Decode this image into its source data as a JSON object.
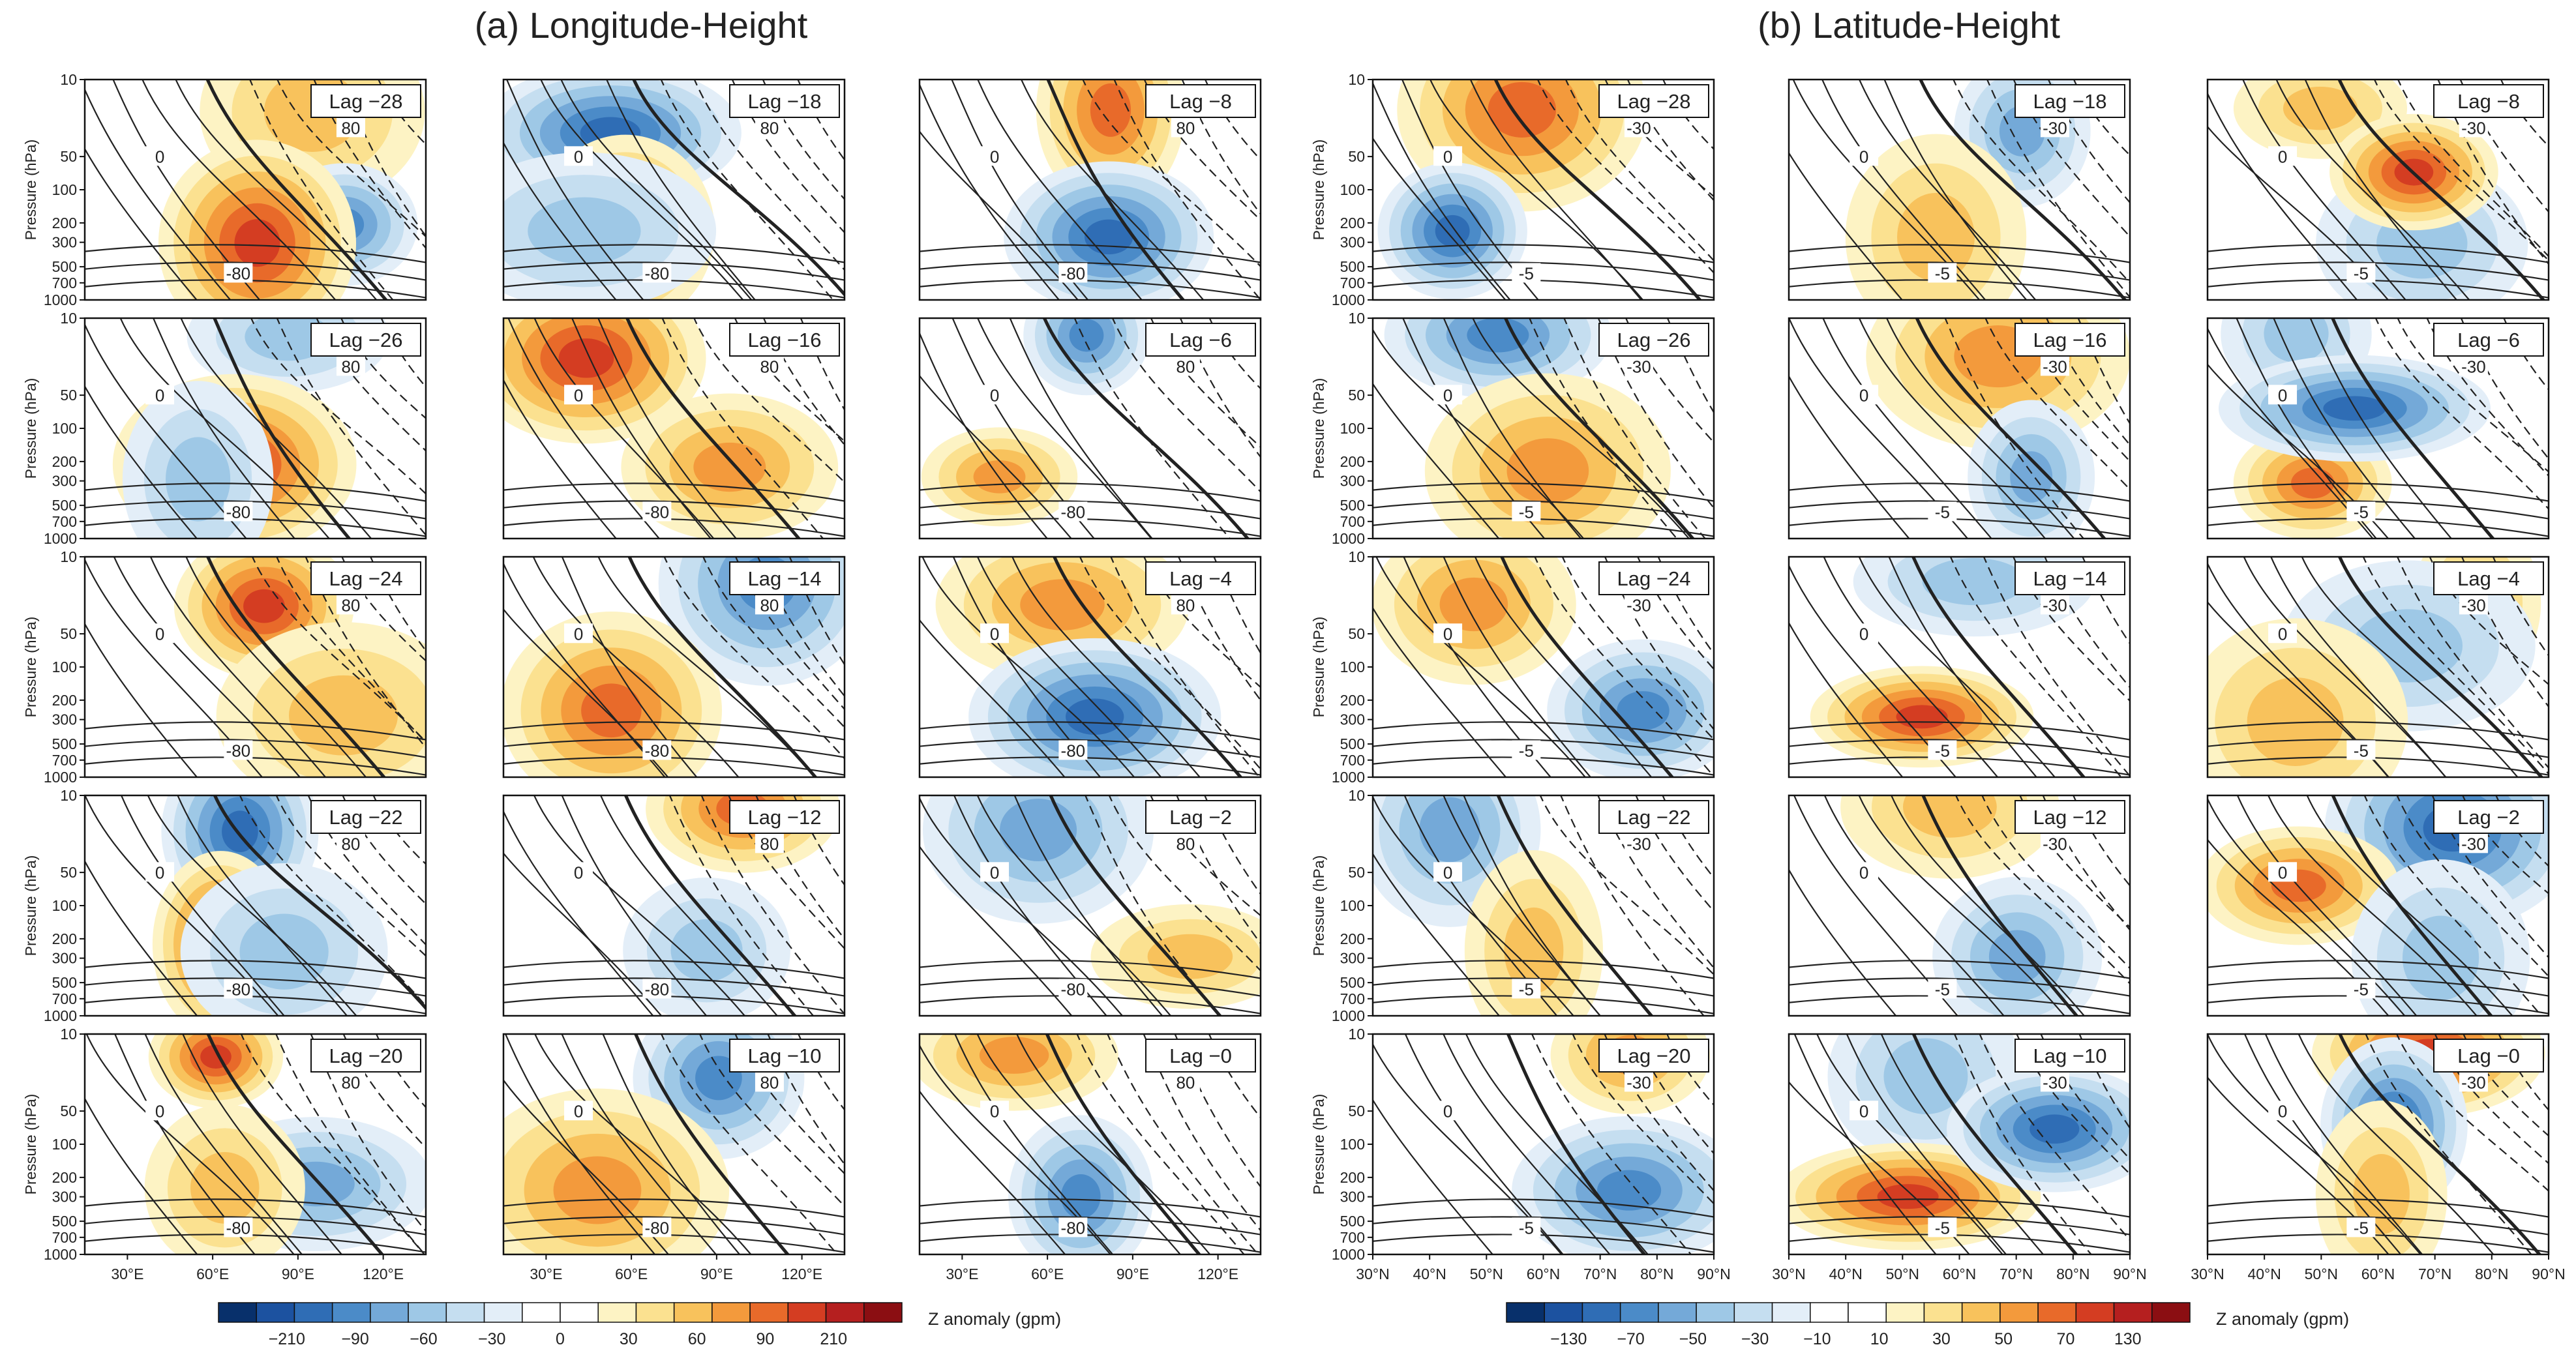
{
  "figure": {
    "section_a_title": "(a) Longitude-Height",
    "section_b_title": "(b) Latitude-Height"
  },
  "chart_data": [
    {
      "type": "contour",
      "panel_group": "a",
      "xlabel": "",
      "ylabel": "Pressure (hPa)",
      "x_ticks": [
        "30°E",
        "60°E",
        "90°E",
        "120°E"
      ],
      "x_tick_values": [
        30,
        60,
        90,
        120
      ],
      "xlim": [
        15,
        135
      ],
      "y_ticks": [
        "10",
        "50",
        "100",
        "200",
        "300",
        "500",
        "700",
        "1000"
      ],
      "y_tick_values": [
        10,
        50,
        100,
        200,
        300,
        500,
        700,
        1000
      ],
      "ylim": [
        1000,
        10
      ],
      "y_scale": "log",
      "contour_labels_seen": [
        "0",
        "80",
        "-80"
      ],
      "panels": [
        {
          "label": "Lag −28",
          "row": 0,
          "col": 0
        },
        {
          "label": "Lag −26",
          "row": 1,
          "col": 0
        },
        {
          "label": "Lag −24",
          "row": 2,
          "col": 0
        },
        {
          "label": "Lag −22",
          "row": 3,
          "col": 0
        },
        {
          "label": "Lag −20",
          "row": 4,
          "col": 0
        },
        {
          "label": "Lag −18",
          "row": 0,
          "col": 1
        },
        {
          "label": "Lag −16",
          "row": 1,
          "col": 1
        },
        {
          "label": "Lag −14",
          "row": 2,
          "col": 1
        },
        {
          "label": "Lag −12",
          "row": 3,
          "col": 1
        },
        {
          "label": "Lag −10",
          "row": 4,
          "col": 1
        },
        {
          "label": "Lag −8",
          "row": 0,
          "col": 2
        },
        {
          "label": "Lag −6",
          "row": 1,
          "col": 2
        },
        {
          "label": "Lag −4",
          "row": 2,
          "col": 2
        },
        {
          "label": "Lag −2",
          "row": 3,
          "col": 2
        },
        {
          "label": "Lag −0",
          "row": 4,
          "col": 2
        }
      ],
      "colorbar": {
        "label": "Z anomaly (gpm)",
        "tick_labels": [
          "−210",
          "−90",
          "−60",
          "−30",
          "0",
          "30",
          "60",
          "90",
          "210"
        ],
        "colors": [
          "#08306b",
          "#1c52a0",
          "#2f6db5",
          "#4b8bc8",
          "#74a9d8",
          "#9ec8e6",
          "#c5def0",
          "#e3eef8",
          "#ffffff",
          "#ffffff",
          "#fdf3c4",
          "#fbe190",
          "#f8c25c",
          "#f39a3c",
          "#e86a2a",
          "#d43d22",
          "#b51f1f",
          "#8b0e12"
        ]
      }
    },
    {
      "type": "contour",
      "panel_group": "b",
      "xlabel": "",
      "ylabel": "Pressure (hPa)",
      "x_ticks": [
        "30°N",
        "40°N",
        "50°N",
        "60°N",
        "70°N",
        "80°N",
        "90°N"
      ],
      "x_tick_values": [
        30,
        40,
        50,
        60,
        70,
        80,
        90
      ],
      "xlim": [
        30,
        90
      ],
      "y_ticks": [
        "10",
        "50",
        "100",
        "200",
        "300",
        "500",
        "700",
        "1000"
      ],
      "y_tick_values": [
        10,
        50,
        100,
        200,
        300,
        500,
        700,
        1000
      ],
      "ylim": [
        1000,
        10
      ],
      "y_scale": "log",
      "contour_labels_seen": [
        "0",
        "-30",
        "-5"
      ],
      "panels": [
        {
          "label": "Lag −28",
          "row": 0,
          "col": 0
        },
        {
          "label": "Lag −26",
          "row": 1,
          "col": 0
        },
        {
          "label": "Lag −24",
          "row": 2,
          "col": 0
        },
        {
          "label": "Lag −22",
          "row": 3,
          "col": 0
        },
        {
          "label": "Lag −20",
          "row": 4,
          "col": 0
        },
        {
          "label": "Lag −18",
          "row": 0,
          "col": 1
        },
        {
          "label": "Lag −16",
          "row": 1,
          "col": 1
        },
        {
          "label": "Lag −14",
          "row": 2,
          "col": 1
        },
        {
          "label": "Lag −12",
          "row": 3,
          "col": 1
        },
        {
          "label": "Lag −10",
          "row": 4,
          "col": 1
        },
        {
          "label": "Lag −8",
          "row": 0,
          "col": 2
        },
        {
          "label": "Lag −6",
          "row": 1,
          "col": 2
        },
        {
          "label": "Lag −4",
          "row": 2,
          "col": 2
        },
        {
          "label": "Lag −2",
          "row": 3,
          "col": 2
        },
        {
          "label": "Lag −0",
          "row": 4,
          "col": 2
        }
      ],
      "colorbar": {
        "label": "Z anomaly (gpm)",
        "tick_labels": [
          "−130",
          "−70",
          "−50",
          "−30",
          "−10",
          "10",
          "30",
          "50",
          "70",
          "130"
        ],
        "colors": [
          "#08306b",
          "#1c52a0",
          "#2f6db5",
          "#4b8bc8",
          "#74a9d8",
          "#9ec8e6",
          "#c5def0",
          "#e3eef8",
          "#ffffff",
          "#ffffff",
          "#fdf3c4",
          "#fbe190",
          "#f8c25c",
          "#f39a3c",
          "#e86a2a",
          "#d43d22",
          "#b51f1f",
          "#8b0e12"
        ]
      }
    }
  ]
}
